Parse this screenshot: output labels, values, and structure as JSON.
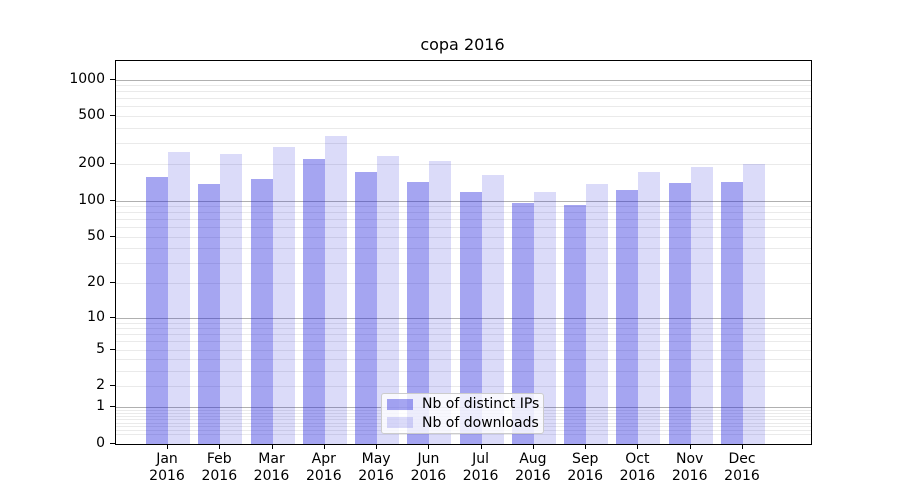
{
  "chart_data": {
    "type": "bar",
    "title": "copa 2016",
    "categories": [
      "Jan",
      "Feb",
      "Mar",
      "Apr",
      "May",
      "Jun",
      "Jul",
      "Aug",
      "Sep",
      "Oct",
      "Nov",
      "Dec"
    ],
    "category_year": "2016",
    "series": [
      {
        "name": "Nb of distinct IPs",
        "color": "#1e1edc66",
        "values": [
          158,
          138,
          152,
          222,
          173,
          143,
          118,
          96,
          92,
          123,
          141,
          142
        ]
      },
      {
        "name": "Nb of downloads",
        "color": "#1e1edc29",
        "values": [
          252,
          242,
          278,
          345,
          232,
          212,
          163,
          118,
          137,
          173,
          190,
          201
        ]
      }
    ],
    "xlabel": "",
    "ylabel": "",
    "yscale": "log1p",
    "ylim": [
      0,
      1420
    ],
    "ytick_labels": [
      1000,
      500,
      200,
      100,
      50,
      20,
      10,
      5,
      2,
      1,
      0
    ],
    "major_grid_values": [
      1,
      10,
      100,
      1000
    ],
    "grid": true,
    "legend_position": "lower center",
    "colors": {
      "grid_major": "#b0b0b0",
      "grid_minor": "#eaeaea",
      "axis": "#000000",
      "text": "#000000",
      "legend_border": "#cccccc"
    }
  }
}
